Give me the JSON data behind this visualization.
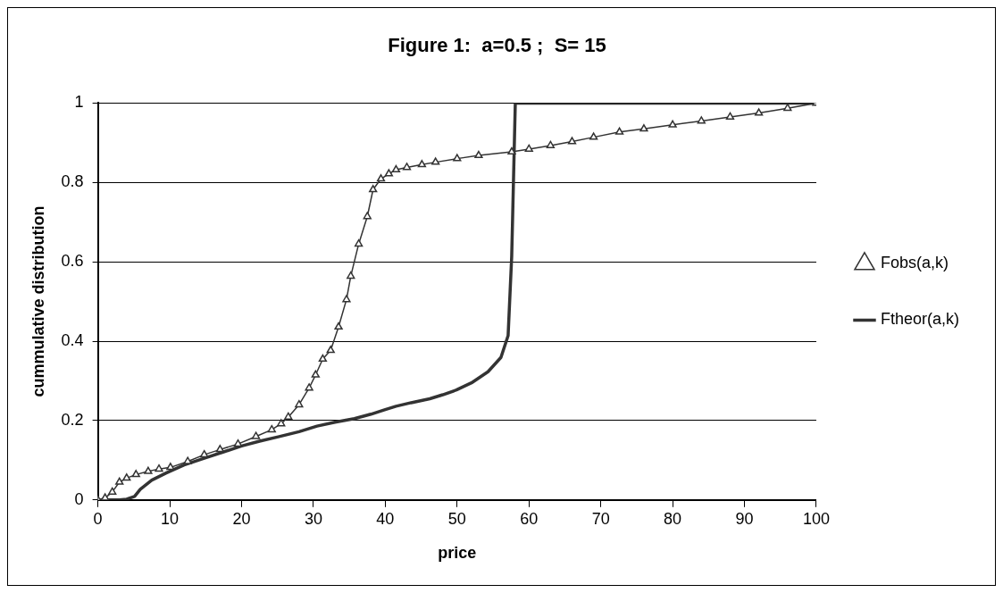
{
  "chart_data": {
    "type": "line",
    "title": "Figure 1:  a=0.5 ;  S= 15",
    "xlabel": "price",
    "ylabel": "cummulative distribution",
    "xlim": [
      0,
      100
    ],
    "xticks": [
      0,
      10,
      20,
      30,
      40,
      50,
      60,
      70,
      80,
      90,
      100
    ],
    "ylim": [
      0,
      1
    ],
    "yticks": [
      0,
      0.2,
      0.4,
      0.6,
      0.8,
      1
    ],
    "grid": "y",
    "legend": "right",
    "series": [
      {
        "name": "Fobs(a,k)",
        "color": "#333333",
        "marker": "triangle",
        "x": [
          0,
          1,
          2,
          3,
          4,
          5.3,
          7,
          8.5,
          10.1,
          12.5,
          14.8,
          17,
          19.5,
          22,
          24.2,
          25.5,
          26.5,
          28,
          29.4,
          30.3,
          31.3,
          32.4,
          33.5,
          34.6,
          35.2,
          36.3,
          37.5,
          38.3,
          39.4,
          40.5,
          41.5,
          43,
          45.1,
          47,
          50,
          53,
          57.6,
          60,
          63,
          66,
          69,
          72.6,
          76,
          80,
          84,
          88,
          92,
          96,
          100
        ],
        "values": [
          0,
          0.005,
          0.02,
          0.045,
          0.055,
          0.064,
          0.072,
          0.078,
          0.082,
          0.097,
          0.114,
          0.127,
          0.141,
          0.16,
          0.177,
          0.192,
          0.209,
          0.24,
          0.282,
          0.315,
          0.355,
          0.377,
          0.436,
          0.505,
          0.564,
          0.645,
          0.714,
          0.782,
          0.809,
          0.822,
          0.832,
          0.838,
          0.845,
          0.851,
          0.86,
          0.868,
          0.877,
          0.884,
          0.893,
          0.903,
          0.914,
          0.927,
          0.935,
          0.945,
          0.955,
          0.965,
          0.975,
          0.987,
          1
        ]
      },
      {
        "name": "Ftheor(a,k)",
        "color": "#333333",
        "marker": "none",
        "x": [
          0,
          3,
          4,
          5.1,
          5.9,
          7.5,
          9.5,
          12,
          14.8,
          17.5,
          20,
          22.5,
          25.1,
          28,
          30.5,
          33,
          35.7,
          38,
          39.9,
          41.5,
          43.6,
          46.2,
          48,
          49.9,
          52,
          54.3,
          56.1,
          57.1,
          57.6,
          58.1,
          60,
          70,
          80,
          90,
          100
        ],
        "values": [
          0,
          0,
          0.002,
          0.009,
          0.027,
          0.05,
          0.068,
          0.088,
          0.105,
          0.121,
          0.136,
          0.148,
          0.159,
          0.172,
          0.186,
          0.196,
          0.205,
          0.216,
          0.227,
          0.236,
          0.245,
          0.255,
          0.265,
          0.277,
          0.295,
          0.323,
          0.359,
          0.414,
          0.614,
          1,
          1,
          1,
          1,
          1,
          1
        ]
      }
    ]
  }
}
